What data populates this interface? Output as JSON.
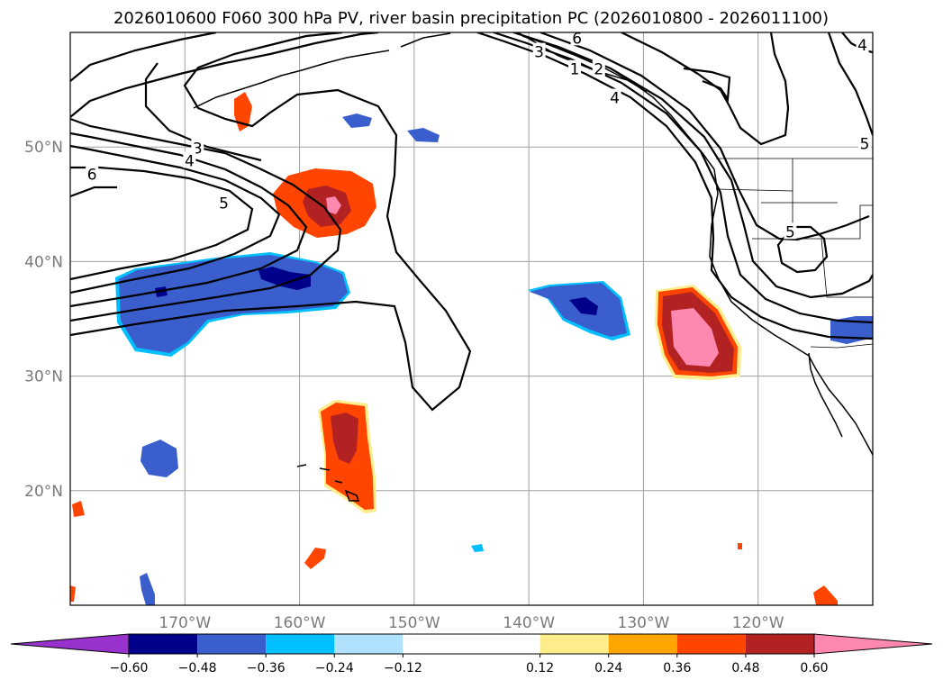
{
  "chart_data": {
    "type": "heatmap",
    "title": "2026010600 F060 300 hPa PV, river basin precipitation PC (2026010800 - 2026011100)",
    "projection": "lat-lon map, North Pacific",
    "xlim": [
      -180,
      -110
    ],
    "ylim": [
      10,
      60
    ],
    "lon_ticks": [
      -170,
      -160,
      -150,
      -140,
      -130,
      -120
    ],
    "lon_tick_labels": [
      "170°W",
      "160°W",
      "150°W",
      "140°W",
      "130°W",
      "120°W"
    ],
    "lat_ticks": [
      20,
      30,
      40,
      50
    ],
    "lat_tick_labels": [
      "20°N",
      "30°N",
      "40°N",
      "50°N"
    ],
    "grid": true,
    "colorbar": {
      "orientation": "horizontal",
      "extend": "both",
      "levels": [
        -0.6,
        -0.48,
        -0.36,
        -0.24,
        -0.12,
        0.12,
        0.24,
        0.36,
        0.48,
        0.6
      ],
      "tick_labels": [
        "−0.60",
        "−0.48",
        "−0.36",
        "−0.24",
        "−0.12",
        "0.12",
        "0.24",
        "0.36",
        "0.48",
        "0.60"
      ],
      "colors": [
        "#9932cc",
        "#00008b",
        "#3a5fcd",
        "#00bfff",
        "#b0e2ff",
        "#ffffff",
        "#ffec8b",
        "#ffa500",
        "#ff4500",
        "#b22222",
        "#ff88b0"
      ]
    },
    "pv_contour_labels": [
      {
        "text": "1",
        "lon": -136,
        "lat": 56.8
      },
      {
        "text": "2",
        "lon": -133.9,
        "lat": 56.8
      },
      {
        "text": "3",
        "lon": -139.1,
        "lat": 58.3
      },
      {
        "text": "4",
        "lon": -132.5,
        "lat": 54.3
      },
      {
        "text": "6",
        "lon": -135.8,
        "lat": 59.5
      },
      {
        "text": "4",
        "lon": -110.9,
        "lat": 58.9
      },
      {
        "text": "5",
        "lon": -110.7,
        "lat": 50.3
      },
      {
        "text": "3",
        "lon": -168.9,
        "lat": 49.9
      },
      {
        "text": "4",
        "lon": -169.6,
        "lat": 48.8
      },
      {
        "text": "5",
        "lon": -166.6,
        "lat": 45.1
      },
      {
        "text": "6",
        "lon": -178.1,
        "lat": 47.6
      },
      {
        "text": "5",
        "lon": -117.2,
        "lat": 42.6
      }
    ]
  }
}
